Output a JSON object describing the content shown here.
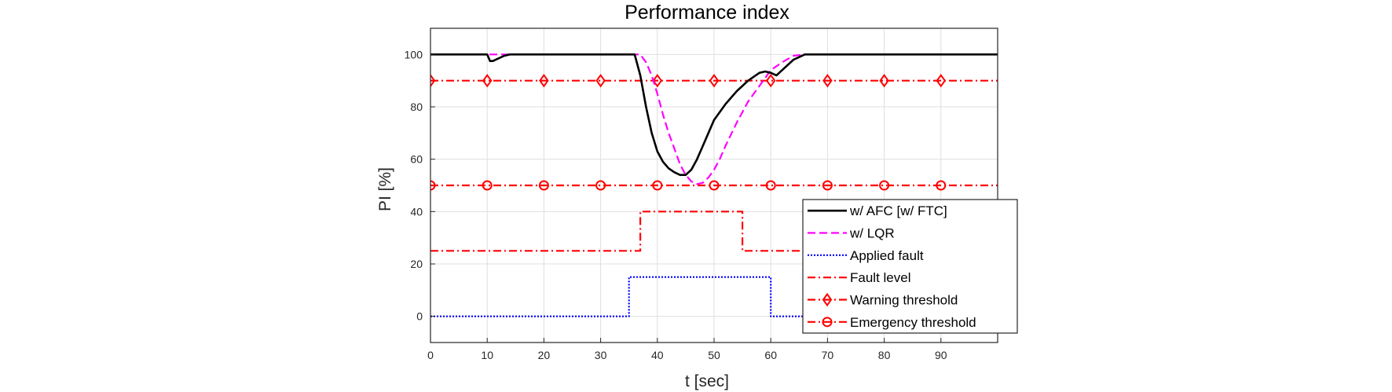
{
  "chart_data": {
    "type": "line",
    "title": "Performance index",
    "xlabel": "t [sec]",
    "ylabel": "PI [%]",
    "xlim": [
      0,
      100
    ],
    "ylim": [
      -10,
      110
    ],
    "xticks": [
      0,
      10,
      20,
      30,
      40,
      50,
      60,
      70,
      80,
      90
    ],
    "yticks": [
      0,
      20,
      40,
      60,
      80,
      100
    ],
    "grid": true,
    "legend_position": "bottom-right",
    "series": [
      {
        "name": "w/ AFC [w/ FTC]",
        "color": "#000000",
        "style": "solid",
        "marker": "none",
        "x": [
          0,
          10,
          10.5,
          11,
          12,
          13,
          14,
          36,
          37,
          38,
          39,
          40,
          41,
          42,
          43,
          44,
          45,
          46,
          47,
          48,
          49,
          50,
          52,
          54,
          56,
          58,
          59,
          60,
          61,
          62,
          64,
          66,
          100
        ],
        "y": [
          100,
          100,
          97.5,
          97.5,
          98.5,
          99.5,
          100,
          100,
          92,
          80,
          70,
          63,
          59,
          56.5,
          55,
          54,
          54,
          56,
          60,
          65,
          70,
          75,
          81,
          86,
          90,
          93,
          93.5,
          93,
          92,
          94,
          98,
          100,
          100
        ]
      },
      {
        "name": "w/ LQR",
        "color": "#ff00ff",
        "style": "dashed",
        "marker": "none",
        "x": [
          0,
          37,
          38,
          39,
          40,
          41,
          42,
          43,
          44,
          45,
          46,
          47,
          48,
          49,
          50,
          51,
          52,
          54,
          56,
          58,
          60,
          62,
          64,
          66,
          100
        ],
        "y": [
          100,
          100,
          97,
          92,
          85,
          77,
          70,
          64,
          58,
          54,
          51.5,
          50.5,
          51,
          53,
          56,
          60,
          65,
          74,
          82,
          88,
          94,
          97,
          99.5,
          100,
          100
        ]
      },
      {
        "name": "Applied fault",
        "color": "#0000ff",
        "style": "dotted",
        "marker": "none",
        "x": [
          0,
          35,
          35,
          60,
          60,
          100
        ],
        "y": [
          0,
          0,
          15,
          15,
          0,
          0
        ]
      },
      {
        "name": "Fault level",
        "color": "#ff0000",
        "style": "dashdot",
        "marker": "none",
        "x": [
          0,
          37,
          37,
          55,
          55,
          100
        ],
        "y": [
          25,
          25,
          40,
          40,
          25,
          25
        ]
      },
      {
        "name": "Warning threshold",
        "color": "#ff0000",
        "style": "dashdot",
        "marker": "diamond",
        "x": [
          0,
          100
        ],
        "y": [
          90,
          90
        ],
        "marker_x": [
          0,
          10,
          20,
          30,
          40,
          50,
          60,
          70,
          80,
          90
        ]
      },
      {
        "name": "Emergency threshold",
        "color": "#ff0000",
        "style": "dashdot",
        "marker": "circle",
        "x": [
          0,
          100
        ],
        "y": [
          50,
          50
        ],
        "marker_x": [
          0,
          10,
          20,
          30,
          40,
          50,
          60,
          70,
          80,
          90
        ]
      }
    ]
  }
}
